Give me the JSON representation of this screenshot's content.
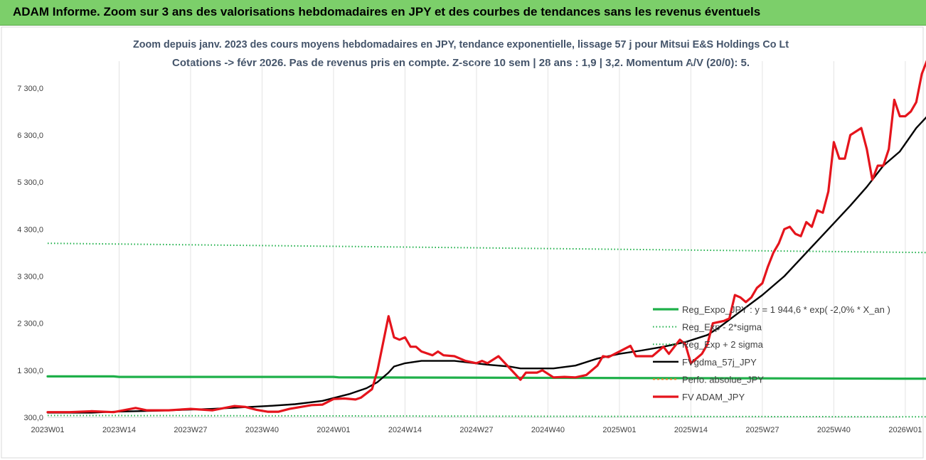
{
  "header": {
    "title": "ADAM Informe. Zoom sur 3 ans des valorisations hebdomadaires en JPY et des courbes de tendances sans les revenus éventuels"
  },
  "colors": {
    "banner": "#7ccf6a",
    "green": "#1fb04a",
    "black": "#000000",
    "red": "#e5141c",
    "orange": "#ed7d31"
  },
  "chart_data": {
    "type": "line",
    "title": "Zoom depuis janv. 2023 des cours moyens hebdomadaires en JPY, tendance exponentielle, lissage 57 j pour Mitsui E&S Holdings Co Lt",
    "subtitle": "Cotations -> févr 2026.  Pas de revenus pris en compte. Z-score 10 sem | 28 ans : 1,9 | 3,2. Momentum A/V (20/0): 5.",
    "y_ticks": [
      "300,0",
      "1 300,0",
      "2 300,0",
      "3 300,0",
      "4 300,0",
      "5 300,0",
      "6 300,0",
      "7 300,0"
    ],
    "y_tick_values": [
      300,
      1300,
      2300,
      3300,
      4300,
      5300,
      6300,
      7300
    ],
    "ylim": [
      300,
      7800
    ],
    "x_ticks": [
      "2023W01",
      "2023W14",
      "2023W27",
      "2023W40",
      "2024W01",
      "2024W14",
      "2024W27",
      "2024W40",
      "2025W01",
      "2025W14",
      "2025W27",
      "2025W40",
      "2026W01"
    ],
    "x_tick_index": [
      0,
      13,
      26,
      39,
      52,
      65,
      78,
      91,
      104,
      117,
      130,
      143,
      156
    ],
    "x_count": 163,
    "grid": "vertical",
    "legend_position": "right-middle",
    "series": [
      {
        "name": "Reg_Expo_JPY : y = 1 944,6 * exp( -2,0% *  X_an )",
        "style": "solid-thick",
        "color": "#1fb04a",
        "points": [
          [
            0,
            1170
          ],
          [
            12,
            1170
          ],
          [
            13,
            1160
          ],
          [
            52,
            1160
          ],
          [
            53,
            1150
          ],
          [
            162,
            1120
          ]
        ]
      },
      {
        "name": "Reg_Exp - 2*sigma",
        "style": "dotted",
        "color": "#1fb04a",
        "points": [
          [
            0,
            340
          ],
          [
            162,
            310
          ]
        ]
      },
      {
        "name": "Reg_Exp + 2 sigma",
        "style": "dotted",
        "color": "#1fb04a",
        "points": [
          [
            0,
            4000
          ],
          [
            162,
            3800
          ]
        ]
      },
      {
        "name": "FVgdma_57j_JPY",
        "style": "solid",
        "color": "#000000",
        "points": [
          [
            0,
            400
          ],
          [
            8,
            400
          ],
          [
            12,
            420
          ],
          [
            20,
            440
          ],
          [
            30,
            480
          ],
          [
            40,
            540
          ],
          [
            45,
            580
          ],
          [
            50,
            650
          ],
          [
            55,
            800
          ],
          [
            58,
            920
          ],
          [
            60,
            1050
          ],
          [
            62,
            1250
          ],
          [
            63,
            1380
          ],
          [
            65,
            1450
          ],
          [
            68,
            1500
          ],
          [
            74,
            1500
          ],
          [
            80,
            1420
          ],
          [
            84,
            1380
          ],
          [
            86,
            1340
          ],
          [
            92,
            1340
          ],
          [
            96,
            1400
          ],
          [
            100,
            1550
          ],
          [
            104,
            1650
          ],
          [
            108,
            1720
          ],
          [
            112,
            1800
          ],
          [
            116,
            1900
          ],
          [
            120,
            2050
          ],
          [
            122,
            2200
          ],
          [
            126,
            2550
          ],
          [
            130,
            2900
          ],
          [
            134,
            3300
          ],
          [
            138,
            3800
          ],
          [
            142,
            4300
          ],
          [
            146,
            4800
          ],
          [
            149,
            5200
          ],
          [
            152,
            5650
          ],
          [
            155,
            5950
          ],
          [
            158,
            6450
          ],
          [
            160,
            6700
          ],
          [
            162,
            6950
          ],
          [
            164,
            7150
          ]
        ]
      },
      {
        "name": "Perfo. absolue_JPY",
        "style": "dashed",
        "color": "#ed7d31",
        "points": []
      },
      {
        "name": "FV ADAM_JPY",
        "style": "solid-thick",
        "color": "#e5141c",
        "points": [
          [
            0,
            410
          ],
          [
            4,
            410
          ],
          [
            8,
            430
          ],
          [
            12,
            410
          ],
          [
            16,
            500
          ],
          [
            18,
            450
          ],
          [
            22,
            450
          ],
          [
            26,
            480
          ],
          [
            30,
            450
          ],
          [
            34,
            540
          ],
          [
            36,
            520
          ],
          [
            38,
            460
          ],
          [
            40,
            420
          ],
          [
            42,
            420
          ],
          [
            44,
            480
          ],
          [
            48,
            560
          ],
          [
            50,
            570
          ],
          [
            52,
            690
          ],
          [
            54,
            700
          ],
          [
            56,
            680
          ],
          [
            57,
            720
          ],
          [
            59,
            900
          ],
          [
            60,
            1300
          ],
          [
            62,
            2450
          ],
          [
            63,
            2000
          ],
          [
            64,
            1950
          ],
          [
            65,
            2000
          ],
          [
            66,
            1800
          ],
          [
            67,
            1800
          ],
          [
            68,
            1700
          ],
          [
            70,
            1620
          ],
          [
            71,
            1700
          ],
          [
            72,
            1620
          ],
          [
            74,
            1600
          ],
          [
            76,
            1500
          ],
          [
            78,
            1450
          ],
          [
            79,
            1500
          ],
          [
            80,
            1450
          ],
          [
            82,
            1600
          ],
          [
            84,
            1350
          ],
          [
            86,
            1100
          ],
          [
            87,
            1250
          ],
          [
            89,
            1250
          ],
          [
            90,
            1300
          ],
          [
            92,
            1150
          ],
          [
            94,
            1160
          ],
          [
            96,
            1150
          ],
          [
            98,
            1200
          ],
          [
            100,
            1400
          ],
          [
            101,
            1600
          ],
          [
            102,
            1580
          ],
          [
            104,
            1700
          ],
          [
            106,
            1820
          ],
          [
            107,
            1600
          ],
          [
            110,
            1600
          ],
          [
            112,
            1800
          ],
          [
            113,
            1650
          ],
          [
            114,
            1800
          ],
          [
            115,
            1950
          ],
          [
            116,
            1850
          ],
          [
            117,
            1450
          ],
          [
            118,
            1550
          ],
          [
            119,
            1650
          ],
          [
            120,
            1850
          ],
          [
            121,
            2300
          ],
          [
            123,
            2350
          ],
          [
            124,
            2400
          ],
          [
            125,
            2900
          ],
          [
            126,
            2850
          ],
          [
            127,
            2750
          ],
          [
            128,
            2850
          ],
          [
            129,
            3050
          ],
          [
            130,
            3150
          ],
          [
            131,
            3500
          ],
          [
            132,
            3800
          ],
          [
            133,
            4000
          ],
          [
            134,
            4300
          ],
          [
            135,
            4350
          ],
          [
            136,
            4200
          ],
          [
            137,
            4150
          ],
          [
            138,
            4450
          ],
          [
            139,
            4350
          ],
          [
            140,
            4700
          ],
          [
            141,
            4650
          ],
          [
            142,
            5100
          ],
          [
            143,
            6150
          ],
          [
            144,
            5800
          ],
          [
            145,
            5800
          ],
          [
            146,
            6300
          ],
          [
            148,
            6450
          ],
          [
            149,
            6000
          ],
          [
            150,
            5350
          ],
          [
            151,
            5650
          ],
          [
            152,
            5650
          ],
          [
            153,
            6000
          ],
          [
            154,
            7050
          ],
          [
            155,
            6700
          ],
          [
            156,
            6700
          ],
          [
            157,
            6800
          ],
          [
            158,
            7000
          ],
          [
            159,
            7600
          ],
          [
            160,
            7900
          ]
        ]
      }
    ]
  }
}
